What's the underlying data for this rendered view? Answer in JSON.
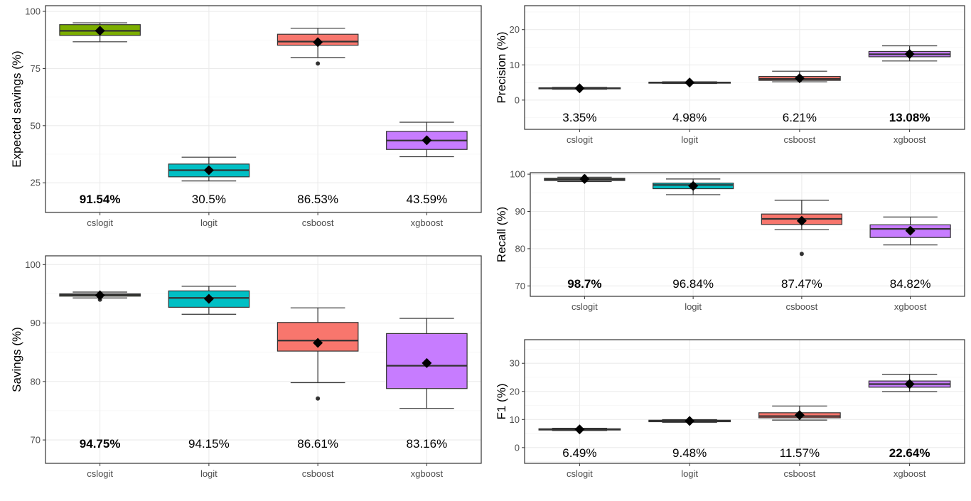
{
  "colors": {
    "cslogit": "#7cae00",
    "logit": "#00bfc4",
    "csboost": "#f8766d",
    "xgboost": "#c77cff"
  },
  "chart_data": [
    {
      "id": "expected-savings",
      "type": "boxplot",
      "ylabel": "Expected savings (%)",
      "ylim": [
        12,
        102.5
      ],
      "yticks": [
        25,
        50,
        75,
        100
      ],
      "categories": [
        "cslogit",
        "logit",
        "csboost",
        "xgboost"
      ],
      "boxes": [
        {
          "min": 86.7,
          "q1": 89.5,
          "median": 91.5,
          "q3": 94.2,
          "max": 95.0,
          "mean": 91.54,
          "outliers": []
        },
        {
          "min": 25.8,
          "q1": 27.6,
          "median": 30.5,
          "q3": 33.2,
          "max": 36.2,
          "mean": 30.5,
          "outliers": []
        },
        {
          "min": 79.8,
          "q1": 85.2,
          "median": 86.8,
          "q3": 90.0,
          "max": 92.6,
          "mean": 86.53,
          "outliers": [
            77.2
          ]
        },
        {
          "min": 36.4,
          "q1": 39.6,
          "median": 43.5,
          "q3": 47.5,
          "max": 51.5,
          "mean": 43.59,
          "outliers": []
        }
      ],
      "mean_labels": [
        "91.54%",
        "30.5%",
        "86.53%",
        "43.59%"
      ],
      "best_index": 0
    },
    {
      "id": "savings",
      "type": "boxplot",
      "ylabel": "Savings (%)",
      "ylim": [
        66,
        101.5
      ],
      "yticks": [
        70,
        80,
        90,
        100
      ],
      "categories": [
        "cslogit",
        "logit",
        "csboost",
        "xgboost"
      ],
      "boxes": [
        {
          "min": 94.3,
          "q1": 94.6,
          "median": 94.8,
          "q3": 95.0,
          "max": 95.3,
          "mean": 94.75,
          "outliers": [
            94.0
          ]
        },
        {
          "min": 91.5,
          "q1": 92.7,
          "median": 94.3,
          "q3": 95.5,
          "max": 96.3,
          "mean": 94.15,
          "outliers": []
        },
        {
          "min": 79.8,
          "q1": 85.2,
          "median": 87.0,
          "q3": 90.1,
          "max": 92.6,
          "mean": 86.61,
          "outliers": [
            77.1
          ]
        },
        {
          "min": 75.4,
          "q1": 78.8,
          "median": 82.7,
          "q3": 88.2,
          "max": 90.8,
          "mean": 83.16,
          "outliers": []
        }
      ],
      "mean_labels": [
        "94.75%",
        "94.15%",
        "86.61%",
        "83.16%"
      ],
      "best_index": 0
    },
    {
      "id": "precision",
      "type": "boxplot",
      "ylabel": "Precision (%)",
      "ylim": [
        -8.3,
        26.8
      ],
      "yticks": [
        0,
        10,
        20
      ],
      "categories": [
        "cslogit",
        "logit",
        "csboost",
        "xgboost"
      ],
      "boxes": [
        {
          "min": 3.1,
          "q1": 3.2,
          "median": 3.35,
          "q3": 3.5,
          "max": 3.6,
          "mean": 3.35,
          "outliers": []
        },
        {
          "min": 4.7,
          "q1": 4.85,
          "median": 4.98,
          "q3": 5.1,
          "max": 5.2,
          "mean": 4.98,
          "outliers": []
        },
        {
          "min": 5.2,
          "q1": 5.6,
          "median": 6.0,
          "q3": 6.7,
          "max": 8.2,
          "mean": 6.21,
          "outliers": []
        },
        {
          "min": 11.1,
          "q1": 12.3,
          "median": 13.0,
          "q3": 13.8,
          "max": 15.4,
          "mean": 13.08,
          "outliers": []
        }
      ],
      "mean_labels": [
        "3.35%",
        "4.98%",
        "6.21%",
        "13.08%"
      ],
      "best_index": 3
    },
    {
      "id": "recall",
      "type": "boxplot",
      "ylabel": "Recall (%)",
      "ylim": [
        67.2,
        100.4
      ],
      "yticks": [
        70,
        80,
        90,
        100
      ],
      "categories": [
        "cslogit",
        "logit",
        "csboost",
        "xgboost"
      ],
      "boxes": [
        {
          "min": 98.0,
          "q1": 98.3,
          "median": 98.6,
          "q3": 98.9,
          "max": 99.2,
          "mean": 98.7,
          "outliers": [
            99.4
          ]
        },
        {
          "min": 94.5,
          "q1": 96.1,
          "median": 97.1,
          "q3": 97.6,
          "max": 98.7,
          "mean": 96.84,
          "outliers": []
        },
        {
          "min": 85.1,
          "q1": 86.5,
          "median": 88.0,
          "q3": 89.3,
          "max": 93.0,
          "mean": 87.47,
          "outliers": [
            78.6
          ]
        },
        {
          "min": 81.0,
          "q1": 83.0,
          "median": 85.3,
          "q3": 86.4,
          "max": 88.5,
          "mean": 84.82,
          "outliers": []
        }
      ],
      "mean_labels": [
        "98.7%",
        "96.84%",
        "87.47%",
        "84.82%"
      ],
      "best_index": 0
    },
    {
      "id": "f1",
      "type": "boxplot",
      "ylabel": "F1 (%)",
      "ylim": [
        -5.6,
        38.4
      ],
      "yticks": [
        0,
        10,
        20,
        30
      ],
      "categories": [
        "cslogit",
        "logit",
        "csboost",
        "xgboost"
      ],
      "boxes": [
        {
          "min": 6.1,
          "q1": 6.25,
          "median": 6.45,
          "q3": 6.7,
          "max": 6.9,
          "mean": 6.49,
          "outliers": []
        },
        {
          "min": 9.0,
          "q1": 9.2,
          "median": 9.45,
          "q3": 9.75,
          "max": 9.95,
          "mean": 9.48,
          "outliers": []
        },
        {
          "min": 9.8,
          "q1": 10.6,
          "median": 11.2,
          "q3": 12.4,
          "max": 14.8,
          "mean": 11.57,
          "outliers": []
        },
        {
          "min": 19.9,
          "q1": 21.5,
          "median": 22.6,
          "q3": 23.7,
          "max": 26.1,
          "mean": 22.64,
          "outliers": []
        }
      ],
      "mean_labels": [
        "6.49%",
        "9.48%",
        "11.57%",
        "22.64%"
      ],
      "best_index": 3
    }
  ]
}
